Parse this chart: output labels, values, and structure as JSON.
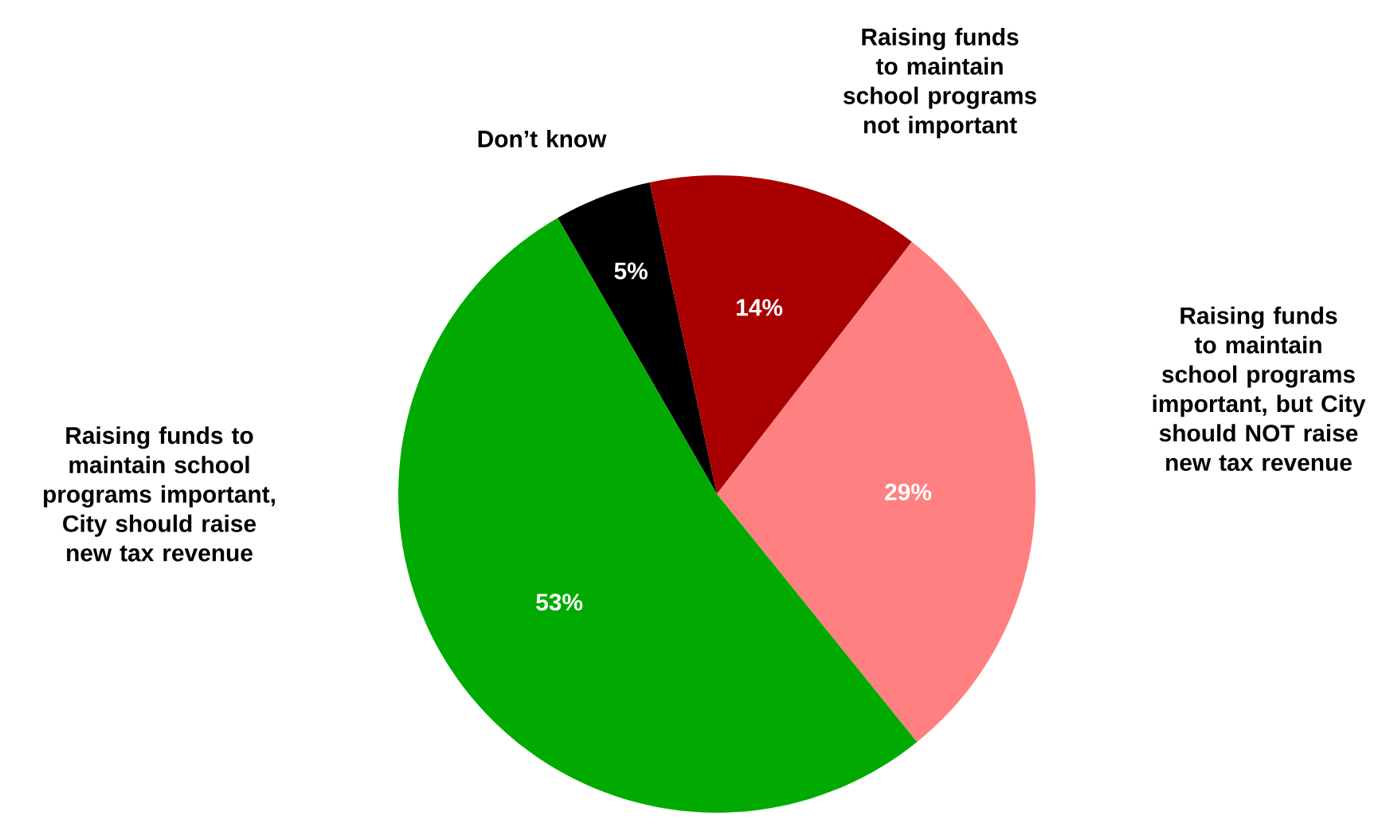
{
  "chart_data": {
    "type": "pie",
    "categories": [
      "Don’t know",
      "Raising funds to maintain school programs  not important",
      "Raising funds to maintain school programs important, but City should NOT raise new tax revenue",
      "Raising funds to maintain school programs important, City should raise new tax revenue"
    ],
    "values": [
      5,
      14,
      29,
      53
    ],
    "colors": [
      "#000000",
      "#a80000",
      "#ff8080",
      "#00aa00"
    ],
    "value_labels": [
      "5%",
      "14%",
      "29%",
      "53%"
    ]
  }
}
